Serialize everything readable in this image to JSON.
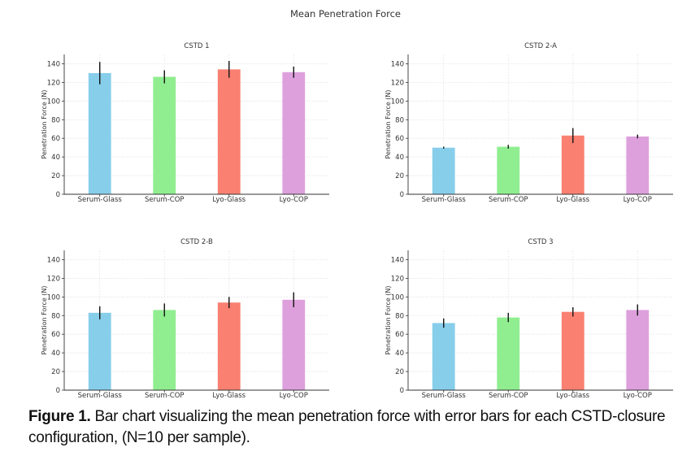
{
  "figure": {
    "suptitle": "Mean Penetration Force",
    "caption_bold": "Figure 1.",
    "caption_text": " Bar chart visualizing the mean penetration force with error bars for each CSTD-closure configuration, (N=10 per sample)."
  },
  "chart_data": [
    {
      "type": "bar",
      "title": "CSTD 1",
      "xlabel": "",
      "ylabel": "Penetration Force (N)",
      "categories": [
        "Serum-Glass",
        "Serum-COP",
        "Lyo-Glass",
        "Lyo-COP"
      ],
      "values": [
        130,
        126,
        134,
        131
      ],
      "errors": [
        12,
        7,
        9,
        6
      ],
      "colors": [
        "#87CEEB",
        "#90EE90",
        "#FA8072",
        "#DDA0DD"
      ],
      "ylim": [
        0,
        150
      ],
      "yticks": [
        0,
        20,
        40,
        60,
        80,
        100,
        120,
        140
      ],
      "grid": true
    },
    {
      "type": "bar",
      "title": "CSTD 2-A",
      "xlabel": "",
      "ylabel": "Penetration Force (N)",
      "categories": [
        "Serum-Glass",
        "Serum-COP",
        "Lyo-Glass",
        "Lyo-COP"
      ],
      "values": [
        50,
        51,
        63,
        62
      ],
      "errors": [
        1,
        2,
        8,
        2
      ],
      "colors": [
        "#87CEEB",
        "#90EE90",
        "#FA8072",
        "#DDA0DD"
      ],
      "ylim": [
        0,
        150
      ],
      "yticks": [
        0,
        20,
        40,
        60,
        80,
        100,
        120,
        140
      ],
      "grid": true
    },
    {
      "type": "bar",
      "title": "CSTD 2-B",
      "xlabel": "",
      "ylabel": "Penetration Force (N)",
      "categories": [
        "Serum-Glass",
        "Serum-COP",
        "Lyo-Glass",
        "Lyo-COP"
      ],
      "values": [
        83,
        86,
        94,
        97
      ],
      "errors": [
        7,
        7,
        6,
        8
      ],
      "colors": [
        "#87CEEB",
        "#90EE90",
        "#FA8072",
        "#DDA0DD"
      ],
      "ylim": [
        0,
        150
      ],
      "yticks": [
        0,
        20,
        40,
        60,
        80,
        100,
        120,
        140
      ],
      "grid": true
    },
    {
      "type": "bar",
      "title": "CSTD 3",
      "xlabel": "",
      "ylabel": "Penetration Force (N)",
      "categories": [
        "Serum-Glass",
        "Serum-COP",
        "Lyo-Glass",
        "Lyo-COP"
      ],
      "values": [
        72,
        78,
        84,
        86
      ],
      "errors": [
        5,
        5,
        5,
        6
      ],
      "colors": [
        "#87CEEB",
        "#90EE90",
        "#FA8072",
        "#DDA0DD"
      ],
      "ylim": [
        0,
        150
      ],
      "yticks": [
        0,
        20,
        40,
        60,
        80,
        100,
        120,
        140
      ],
      "grid": true
    }
  ]
}
